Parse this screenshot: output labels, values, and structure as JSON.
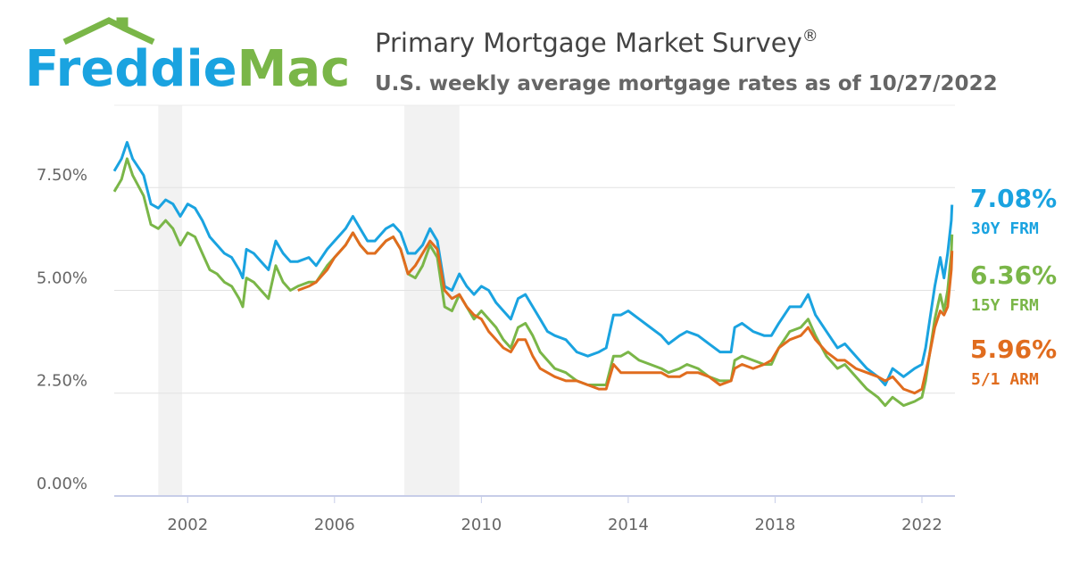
{
  "logo": {
    "word1": "Freddie",
    "word2": "Mac",
    "word1_color": "#1aa3e0",
    "word2_color": "#7ab648",
    "roof_color": "#7ab648"
  },
  "header": {
    "title": "Primary Mortgage Market Survey",
    "title_mark": "®",
    "subtitle": "U.S. weekly average mortgage rates as of 10/27/2022"
  },
  "chart_data": {
    "type": "line",
    "xlim": [
      2000.0,
      2022.9
    ],
    "ylim": [
      0,
      9.5
    ],
    "grid": true,
    "y_ticks": [
      {
        "value": 0,
        "label": "0.00%"
      },
      {
        "value": 2.5,
        "label": "2.50%"
      },
      {
        "value": 5,
        "label": "5.00%"
      },
      {
        "value": 7.5,
        "label": "7.50%"
      }
    ],
    "x_ticks": [
      {
        "value": 2002,
        "label": "2002"
      },
      {
        "value": 2006,
        "label": "2006"
      },
      {
        "value": 2010,
        "label": "2010"
      },
      {
        "value": 2014,
        "label": "2014"
      },
      {
        "value": 2018,
        "label": "2018"
      },
      {
        "value": 2022,
        "label": "2022"
      }
    ],
    "shaded_bands": [
      {
        "from": 2001.2,
        "to": 2001.85
      },
      {
        "from": 2007.9,
        "to": 2009.4
      }
    ],
    "band_color": "#f2f2f2",
    "series": [
      {
        "name": "30Y FRM",
        "last_value": "7.08%",
        "color": "#1aa3e0",
        "points": [
          [
            2000.0,
            7.9
          ],
          [
            2000.2,
            8.2
          ],
          [
            2000.35,
            8.6
          ],
          [
            2000.5,
            8.2
          ],
          [
            2000.8,
            7.8
          ],
          [
            2001.0,
            7.1
          ],
          [
            2001.2,
            7.0
          ],
          [
            2001.4,
            7.2
          ],
          [
            2001.6,
            7.1
          ],
          [
            2001.8,
            6.8
          ],
          [
            2002.0,
            7.1
          ],
          [
            2002.2,
            7.0
          ],
          [
            2002.4,
            6.7
          ],
          [
            2002.6,
            6.3
          ],
          [
            2002.8,
            6.1
          ],
          [
            2003.0,
            5.9
          ],
          [
            2003.2,
            5.8
          ],
          [
            2003.4,
            5.5
          ],
          [
            2003.5,
            5.3
          ],
          [
            2003.6,
            6.0
          ],
          [
            2003.8,
            5.9
          ],
          [
            2004.0,
            5.7
          ],
          [
            2004.2,
            5.5
          ],
          [
            2004.4,
            6.2
          ],
          [
            2004.6,
            5.9
          ],
          [
            2004.8,
            5.7
          ],
          [
            2005.0,
            5.7
          ],
          [
            2005.3,
            5.8
          ],
          [
            2005.5,
            5.6
          ],
          [
            2005.8,
            6.0
          ],
          [
            2006.0,
            6.2
          ],
          [
            2006.3,
            6.5
          ],
          [
            2006.5,
            6.8
          ],
          [
            2006.7,
            6.5
          ],
          [
            2006.9,
            6.2
          ],
          [
            2007.1,
            6.2
          ],
          [
            2007.4,
            6.5
          ],
          [
            2007.6,
            6.6
          ],
          [
            2007.8,
            6.4
          ],
          [
            2008.0,
            5.9
          ],
          [
            2008.2,
            5.9
          ],
          [
            2008.4,
            6.1
          ],
          [
            2008.6,
            6.5
          ],
          [
            2008.8,
            6.2
          ],
          [
            2009.0,
            5.1
          ],
          [
            2009.2,
            5.0
          ],
          [
            2009.4,
            5.4
          ],
          [
            2009.6,
            5.1
          ],
          [
            2009.8,
            4.9
          ],
          [
            2010.0,
            5.1
          ],
          [
            2010.2,
            5.0
          ],
          [
            2010.4,
            4.7
          ],
          [
            2010.6,
            4.5
          ],
          [
            2010.8,
            4.3
          ],
          [
            2011.0,
            4.8
          ],
          [
            2011.2,
            4.9
          ],
          [
            2011.4,
            4.6
          ],
          [
            2011.6,
            4.3
          ],
          [
            2011.8,
            4.0
          ],
          [
            2012.0,
            3.9
          ],
          [
            2012.3,
            3.8
          ],
          [
            2012.6,
            3.5
          ],
          [
            2012.9,
            3.4
          ],
          [
            2013.2,
            3.5
          ],
          [
            2013.4,
            3.6
          ],
          [
            2013.6,
            4.4
          ],
          [
            2013.8,
            4.4
          ],
          [
            2014.0,
            4.5
          ],
          [
            2014.3,
            4.3
          ],
          [
            2014.6,
            4.1
          ],
          [
            2014.9,
            3.9
          ],
          [
            2015.1,
            3.7
          ],
          [
            2015.4,
            3.9
          ],
          [
            2015.6,
            4.0
          ],
          [
            2015.9,
            3.9
          ],
          [
            2016.2,
            3.7
          ],
          [
            2016.5,
            3.5
          ],
          [
            2016.8,
            3.5
          ],
          [
            2016.9,
            4.1
          ],
          [
            2017.1,
            4.2
          ],
          [
            2017.4,
            4.0
          ],
          [
            2017.7,
            3.9
          ],
          [
            2017.9,
            3.9
          ],
          [
            2018.1,
            4.2
          ],
          [
            2018.4,
            4.6
          ],
          [
            2018.7,
            4.6
          ],
          [
            2018.9,
            4.9
          ],
          [
            2019.1,
            4.4
          ],
          [
            2019.4,
            4.0
          ],
          [
            2019.7,
            3.6
          ],
          [
            2019.9,
            3.7
          ],
          [
            2020.2,
            3.4
          ],
          [
            2020.5,
            3.1
          ],
          [
            2020.8,
            2.9
          ],
          [
            2021.0,
            2.7
          ],
          [
            2021.2,
            3.1
          ],
          [
            2021.5,
            2.9
          ],
          [
            2021.8,
            3.1
          ],
          [
            2022.0,
            3.2
          ],
          [
            2022.1,
            3.6
          ],
          [
            2022.2,
            4.2
          ],
          [
            2022.35,
            5.1
          ],
          [
            2022.5,
            5.8
          ],
          [
            2022.6,
            5.3
          ],
          [
            2022.7,
            5.9
          ],
          [
            2022.8,
            6.7
          ],
          [
            2022.82,
            7.08
          ]
        ]
      },
      {
        "name": "15Y FRM",
        "last_value": "6.36%",
        "color": "#7ab648",
        "points": [
          [
            2000.0,
            7.4
          ],
          [
            2000.2,
            7.7
          ],
          [
            2000.35,
            8.2
          ],
          [
            2000.5,
            7.8
          ],
          [
            2000.8,
            7.3
          ],
          [
            2001.0,
            6.6
          ],
          [
            2001.2,
            6.5
          ],
          [
            2001.4,
            6.7
          ],
          [
            2001.6,
            6.5
          ],
          [
            2001.8,
            6.1
          ],
          [
            2002.0,
            6.4
          ],
          [
            2002.2,
            6.3
          ],
          [
            2002.4,
            5.9
          ],
          [
            2002.6,
            5.5
          ],
          [
            2002.8,
            5.4
          ],
          [
            2003.0,
            5.2
          ],
          [
            2003.2,
            5.1
          ],
          [
            2003.4,
            4.8
          ],
          [
            2003.5,
            4.6
          ],
          [
            2003.6,
            5.3
          ],
          [
            2003.8,
            5.2
          ],
          [
            2004.0,
            5.0
          ],
          [
            2004.2,
            4.8
          ],
          [
            2004.4,
            5.6
          ],
          [
            2004.6,
            5.2
          ],
          [
            2004.8,
            5.0
          ],
          [
            2005.0,
            5.1
          ],
          [
            2005.3,
            5.2
          ],
          [
            2005.5,
            5.2
          ],
          [
            2005.8,
            5.6
          ],
          [
            2006.0,
            5.8
          ],
          [
            2006.3,
            6.1
          ],
          [
            2006.5,
            6.4
          ],
          [
            2006.7,
            6.1
          ],
          [
            2006.9,
            5.9
          ],
          [
            2007.1,
            5.9
          ],
          [
            2007.4,
            6.2
          ],
          [
            2007.6,
            6.3
          ],
          [
            2007.8,
            6.0
          ],
          [
            2008.0,
            5.4
          ],
          [
            2008.2,
            5.3
          ],
          [
            2008.4,
            5.6
          ],
          [
            2008.6,
            6.1
          ],
          [
            2008.8,
            5.8
          ],
          [
            2009.0,
            4.6
          ],
          [
            2009.2,
            4.5
          ],
          [
            2009.4,
            4.9
          ],
          [
            2009.6,
            4.6
          ],
          [
            2009.8,
            4.3
          ],
          [
            2010.0,
            4.5
          ],
          [
            2010.2,
            4.3
          ],
          [
            2010.4,
            4.1
          ],
          [
            2010.6,
            3.8
          ],
          [
            2010.8,
            3.6
          ],
          [
            2011.0,
            4.1
          ],
          [
            2011.2,
            4.2
          ],
          [
            2011.4,
            3.9
          ],
          [
            2011.6,
            3.5
          ],
          [
            2011.8,
            3.3
          ],
          [
            2012.0,
            3.1
          ],
          [
            2012.3,
            3.0
          ],
          [
            2012.6,
            2.8
          ],
          [
            2012.9,
            2.7
          ],
          [
            2013.2,
            2.7
          ],
          [
            2013.4,
            2.7
          ],
          [
            2013.6,
            3.4
          ],
          [
            2013.8,
            3.4
          ],
          [
            2014.0,
            3.5
          ],
          [
            2014.3,
            3.3
          ],
          [
            2014.6,
            3.2
          ],
          [
            2014.9,
            3.1
          ],
          [
            2015.1,
            3.0
          ],
          [
            2015.4,
            3.1
          ],
          [
            2015.6,
            3.2
          ],
          [
            2015.9,
            3.1
          ],
          [
            2016.2,
            2.9
          ],
          [
            2016.5,
            2.8
          ],
          [
            2016.8,
            2.8
          ],
          [
            2016.9,
            3.3
          ],
          [
            2017.1,
            3.4
          ],
          [
            2017.4,
            3.3
          ],
          [
            2017.7,
            3.2
          ],
          [
            2017.9,
            3.2
          ],
          [
            2018.1,
            3.6
          ],
          [
            2018.4,
            4.0
          ],
          [
            2018.7,
            4.1
          ],
          [
            2018.9,
            4.3
          ],
          [
            2019.1,
            3.9
          ],
          [
            2019.4,
            3.4
          ],
          [
            2019.7,
            3.1
          ],
          [
            2019.9,
            3.2
          ],
          [
            2020.2,
            2.9
          ],
          [
            2020.5,
            2.6
          ],
          [
            2020.8,
            2.4
          ],
          [
            2021.0,
            2.2
          ],
          [
            2021.2,
            2.4
          ],
          [
            2021.5,
            2.2
          ],
          [
            2021.8,
            2.3
          ],
          [
            2022.0,
            2.4
          ],
          [
            2022.1,
            2.8
          ],
          [
            2022.2,
            3.4
          ],
          [
            2022.35,
            4.3
          ],
          [
            2022.5,
            4.9
          ],
          [
            2022.6,
            4.5
          ],
          [
            2022.7,
            5.0
          ],
          [
            2022.8,
            5.9
          ],
          [
            2022.82,
            6.36
          ]
        ]
      },
      {
        "name": "5/1 ARM",
        "last_value": "5.96%",
        "color": "#e06c1e",
        "points": [
          [
            2005.0,
            5.0
          ],
          [
            2005.3,
            5.1
          ],
          [
            2005.5,
            5.2
          ],
          [
            2005.8,
            5.5
          ],
          [
            2006.0,
            5.8
          ],
          [
            2006.3,
            6.1
          ],
          [
            2006.5,
            6.4
          ],
          [
            2006.7,
            6.1
          ],
          [
            2006.9,
            5.9
          ],
          [
            2007.1,
            5.9
          ],
          [
            2007.4,
            6.2
          ],
          [
            2007.6,
            6.3
          ],
          [
            2007.8,
            6.0
          ],
          [
            2008.0,
            5.4
          ],
          [
            2008.2,
            5.6
          ],
          [
            2008.4,
            5.9
          ],
          [
            2008.6,
            6.2
          ],
          [
            2008.8,
            6.0
          ],
          [
            2009.0,
            5.0
          ],
          [
            2009.2,
            4.8
          ],
          [
            2009.4,
            4.9
          ],
          [
            2009.6,
            4.6
          ],
          [
            2009.8,
            4.4
          ],
          [
            2010.0,
            4.3
          ],
          [
            2010.2,
            4.0
          ],
          [
            2010.4,
            3.8
          ],
          [
            2010.6,
            3.6
          ],
          [
            2010.8,
            3.5
          ],
          [
            2011.0,
            3.8
          ],
          [
            2011.2,
            3.8
          ],
          [
            2011.4,
            3.4
          ],
          [
            2011.6,
            3.1
          ],
          [
            2011.8,
            3.0
          ],
          [
            2012.0,
            2.9
          ],
          [
            2012.3,
            2.8
          ],
          [
            2012.6,
            2.8
          ],
          [
            2012.9,
            2.7
          ],
          [
            2013.2,
            2.6
          ],
          [
            2013.4,
            2.6
          ],
          [
            2013.6,
            3.2
          ],
          [
            2013.8,
            3.0
          ],
          [
            2014.0,
            3.0
          ],
          [
            2014.3,
            3.0
          ],
          [
            2014.6,
            3.0
          ],
          [
            2014.9,
            3.0
          ],
          [
            2015.1,
            2.9
          ],
          [
            2015.4,
            2.9
          ],
          [
            2015.6,
            3.0
          ],
          [
            2015.9,
            3.0
          ],
          [
            2016.2,
            2.9
          ],
          [
            2016.5,
            2.7
          ],
          [
            2016.8,
            2.8
          ],
          [
            2016.9,
            3.1
          ],
          [
            2017.1,
            3.2
          ],
          [
            2017.4,
            3.1
          ],
          [
            2017.7,
            3.2
          ],
          [
            2017.9,
            3.3
          ],
          [
            2018.1,
            3.6
          ],
          [
            2018.4,
            3.8
          ],
          [
            2018.7,
            3.9
          ],
          [
            2018.9,
            4.1
          ],
          [
            2019.1,
            3.8
          ],
          [
            2019.4,
            3.5
          ],
          [
            2019.7,
            3.3
          ],
          [
            2019.9,
            3.3
          ],
          [
            2020.2,
            3.1
          ],
          [
            2020.5,
            3.0
          ],
          [
            2020.8,
            2.9
          ],
          [
            2021.0,
            2.8
          ],
          [
            2021.2,
            2.9
          ],
          [
            2021.5,
            2.6
          ],
          [
            2021.8,
            2.5
          ],
          [
            2022.0,
            2.6
          ],
          [
            2022.1,
            3.0
          ],
          [
            2022.2,
            3.4
          ],
          [
            2022.35,
            4.1
          ],
          [
            2022.5,
            4.5
          ],
          [
            2022.6,
            4.4
          ],
          [
            2022.7,
            4.6
          ],
          [
            2022.8,
            5.5
          ],
          [
            2022.82,
            5.96
          ]
        ]
      }
    ]
  }
}
